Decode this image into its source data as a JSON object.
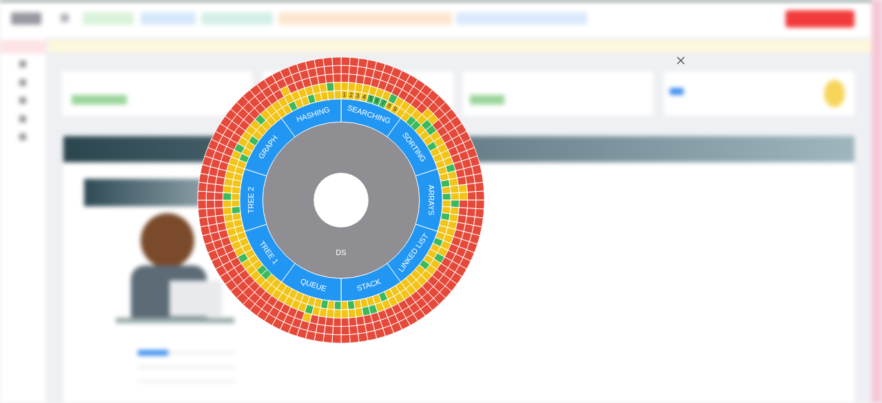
{
  "chart_data": {
    "type": "sunburst",
    "center": {
      "label": "DS",
      "color": "#8e8e93"
    },
    "categories": [
      "SEARCHING",
      "SORTING",
      "ARRAYS",
      "LINKED LIST",
      "STACK",
      "QUEUE",
      "TREE 1",
      "TREE 2",
      "GRAPH",
      "HASHING"
    ],
    "values": [
      10,
      10,
      10,
      10,
      10,
      10,
      10,
      10,
      10,
      10
    ],
    "color": "#2196f3",
    "rings": [
      {
        "colors": [
          [
            "#f2c417",
            "#f2c417",
            "#f2c417",
            "#f2c417",
            "#3cb95b",
            "#3cb95b",
            "#3cb95b",
            "#f2c417",
            "#f2c417",
            "#f2c417"
          ],
          [
            "#f2c417",
            "#3cb95b",
            "#3cb95b",
            "#f2c417",
            "#f2c417",
            "#f2c417",
            "#3cb95b",
            "#f2c417",
            "#f2c417",
            "#f2c417"
          ],
          [
            "#f2c417",
            "#f2c417",
            "#3cb95b",
            "#f2c417",
            "#3cb95b",
            "#f2c417",
            "#f2c417",
            "#3cb95b",
            "#f2c417",
            "#f2c417"
          ],
          [
            "#f2c417",
            "#3cb95b",
            "#f2c417",
            "#f2c417",
            "#f2c417",
            "#3cb95b",
            "#f2c417",
            "#f2c417",
            "#f2c417",
            "#f2c417"
          ],
          [
            "#f2c417",
            "#f2c417",
            "#f2c417",
            "#3cb95b",
            "#f2c417",
            "#f2c417",
            "#f2c417",
            "#f2c417",
            "#3cb95b",
            "#f2c417"
          ],
          [
            "#3cb95b",
            "#f2c417",
            "#3cb95b",
            "#f2c417",
            "#f2c417",
            "#f2c417",
            "#f2c417",
            "#f2c417",
            "#f2c417",
            "#f2c417"
          ],
          [
            "#f2c417",
            "#f2c417",
            "#3cb95b",
            "#3cb95b",
            "#f2c417",
            "#f2c417",
            "#f2c417",
            "#f2c417",
            "#f2c417",
            "#f2c417"
          ],
          [
            "#f2c417",
            "#f2c417",
            "#f2c417",
            "#3cb95b",
            "#f2c417",
            "#f2c417",
            "#f2c417",
            "#f2c417",
            "#f2c417",
            "#f2c417"
          ],
          [
            "#f2c417",
            "#3cb95b",
            "#f2c417",
            "#f2c417",
            "#3cb95b",
            "#f2c417",
            "#f2c417",
            "#f2c417",
            "#f2c417",
            "#f2c417"
          ],
          [
            "#f2c417",
            "#f2c417",
            "#3cb95b",
            "#f2c417",
            "#f2c417",
            "#3cb95b",
            "#f2c417",
            "#f2c417",
            "#f2c417",
            "#f2c417"
          ]
        ],
        "labels": [
          [
            "1",
            "2",
            "3",
            "4",
            "5",
            "6",
            "7",
            "8",
            "9",
            null
          ],
          [
            null,
            null,
            null,
            null,
            null,
            null,
            null,
            null,
            null,
            null
          ],
          [
            null,
            null,
            null,
            null,
            null,
            null,
            null,
            null,
            null,
            null
          ],
          [
            null,
            null,
            null,
            null,
            null,
            null,
            null,
            null,
            null,
            null
          ],
          [
            null,
            null,
            null,
            null,
            null,
            null,
            null,
            null,
            null,
            null
          ],
          [
            null,
            null,
            null,
            null,
            null,
            null,
            null,
            null,
            null,
            null
          ],
          [
            null,
            null,
            null,
            null,
            null,
            null,
            null,
            null,
            null,
            null
          ],
          [
            null,
            null,
            null,
            null,
            null,
            null,
            null,
            null,
            null,
            null
          ],
          [
            null,
            null,
            null,
            null,
            null,
            null,
            null,
            null,
            null,
            null
          ],
          [
            null,
            null,
            null,
            null,
            null,
            null,
            null,
            null,
            null,
            null
          ]
        ]
      },
      {
        "colors": [
          [
            "#f2c417",
            "#f2c417",
            "#f2c417",
            "#f2c417",
            "#f2c417",
            "#f2c417",
            "#f2c417",
            "#3cb95b",
            "#f2c417",
            "#f2c417"
          ],
          [
            "#f2c417",
            "#f2c417",
            "#f2c417",
            "#3cb95b",
            "#3cb95b",
            "#f2c417",
            "#f2c417",
            "#f2c417",
            "#f2c417",
            "#f2c417"
          ],
          [
            "#3cb95b",
            "#f2c417",
            "#f2c417",
            "#f2c417",
            "#f2c417",
            "#3cb95b",
            "#f2c417",
            "#f2c417",
            "#f2c417",
            "#f2c417"
          ],
          [
            "#f2c417",
            "#f2c417",
            "#f2c417",
            "#3cb95b",
            "#f2c417",
            "#f2c417",
            "#f2c417",
            "#f2c417",
            "#f2c417",
            "#f2c417"
          ],
          [
            "#f2c417",
            "#f2c417",
            "#f2c417",
            "#f2c417",
            "#f2c417",
            "#3cb95b",
            "#3cb95b",
            "#f2c417",
            "#f2c417",
            "#f2c417"
          ],
          [
            "#f2c417",
            "#f2c417",
            "#f2c417",
            "#f2c417",
            "#3cb95b",
            "#f2c417",
            "#f2c417",
            "#f2c417",
            "#f2c417",
            "#f2c417"
          ],
          [
            "#f2c417",
            "#f2c417",
            "#f2c417",
            "#f2c417",
            "#f2c417",
            "#f2c417",
            "#3cb95b",
            "#f2c417",
            "#f2c417",
            "#f2c417"
          ],
          [
            "#f2c417",
            "#f2c417",
            "#f2c417",
            "#f2c417",
            "#f2c417",
            "#3cb95b",
            "#f2c417",
            "#f2c417",
            "#f2c417",
            "#f2c417"
          ],
          [
            "#f2c417",
            "#f2c417",
            "#3cb95b",
            "#f2c417",
            "#f2c417",
            "#f2c417",
            "#f2c417",
            "#3cb95b",
            "#f2c417",
            "#f2c417"
          ],
          [
            "#f2c417",
            "#f2c417",
            "#f2c417",
            "#f2c417",
            "#f2c417",
            "#f2c417",
            "#f2c417",
            "#f2c417",
            "#3cb95b",
            "#f2c417"
          ]
        ]
      },
      {
        "colors": [
          [
            "#e5493a",
            "#e5493a",
            "#e5493a",
            "#e5493a",
            "#e5493a",
            "#e5493a",
            "#e5493a",
            "#e5493a",
            "#e5493a",
            "#e5493a"
          ],
          [
            "#e5493a",
            "#e5493a",
            "#f2c417",
            "#f2c417",
            "#e5493a",
            "#e5493a",
            "#e5493a",
            "#e5493a",
            "#e5493a",
            "#e5493a"
          ],
          [
            "#e5493a",
            "#e5493a",
            "#e5493a",
            "#f2c417",
            "#f2c417",
            "#e5493a",
            "#e5493a",
            "#e5493a",
            "#e5493a",
            "#e5493a"
          ],
          [
            "#e5493a",
            "#e5493a",
            "#e5493a",
            "#e5493a",
            "#e5493a",
            "#e5493a",
            "#e5493a",
            "#e5493a",
            "#e5493a",
            "#e5493a"
          ],
          [
            "#e5493a",
            "#e5493a",
            "#e5493a",
            "#e5493a",
            "#e5493a",
            "#e5493a",
            "#e5493a",
            "#e5493a",
            "#e5493a",
            "#e5493a"
          ],
          [
            "#e5493a",
            "#e5493a",
            "#e5493a",
            "#e5493a",
            "#f2c417",
            "#e5493a",
            "#e5493a",
            "#e5493a",
            "#e5493a",
            "#e5493a"
          ],
          [
            "#e5493a",
            "#e5493a",
            "#e5493a",
            "#e5493a",
            "#e5493a",
            "#e5493a",
            "#e5493a",
            "#e5493a",
            "#e5493a",
            "#e5493a"
          ],
          [
            "#e5493a",
            "#e5493a",
            "#e5493a",
            "#e5493a",
            "#e5493a",
            "#e5493a",
            "#e5493a",
            "#e5493a",
            "#e5493a",
            "#e5493a"
          ],
          [
            "#e5493a",
            "#e5493a",
            "#e5493a",
            "#e5493a",
            "#e5493a",
            "#e5493a",
            "#e5493a",
            "#e5493a",
            "#e5493a",
            "#e5493a"
          ],
          [
            "#e5493a",
            "#e5493a",
            "#f2c417",
            "#e5493a",
            "#e5493a",
            "#e5493a",
            "#e5493a",
            "#e5493a",
            "#e5493a",
            "#e5493a"
          ]
        ]
      },
      {
        "colors": [
          [
            "#e5493a",
            "#e5493a",
            "#e5493a",
            "#e5493a",
            "#e5493a",
            "#e5493a",
            "#e5493a",
            "#e5493a",
            "#e5493a",
            "#e5493a"
          ],
          [
            "#e5493a",
            "#e5493a",
            "#e5493a",
            "#e5493a",
            "#e5493a",
            "#e5493a",
            "#e5493a",
            "#e5493a",
            "#e5493a",
            "#e5493a"
          ],
          [
            "#e5493a",
            "#e5493a",
            "#e5493a",
            "#e5493a",
            "#e5493a",
            "#e5493a",
            "#e5493a",
            "#e5493a",
            "#e5493a",
            "#e5493a"
          ],
          [
            "#e5493a",
            "#e5493a",
            "#e5493a",
            "#e5493a",
            "#e5493a",
            "#e5493a",
            "#e5493a",
            "#e5493a",
            "#e5493a",
            "#e5493a"
          ],
          [
            "#e5493a",
            "#e5493a",
            "#e5493a",
            "#e5493a",
            "#e5493a",
            "#e5493a",
            "#e5493a",
            "#e5493a",
            "#e5493a",
            "#e5493a"
          ],
          [
            "#e5493a",
            "#e5493a",
            "#e5493a",
            "#e5493a",
            "#e5493a",
            "#e5493a",
            "#e5493a",
            "#e5493a",
            "#e5493a",
            "#e5493a"
          ],
          [
            "#e5493a",
            "#e5493a",
            "#e5493a",
            "#e5493a",
            "#e5493a",
            "#e5493a",
            "#e5493a",
            "#e5493a",
            "#e5493a",
            "#e5493a"
          ],
          [
            "#e5493a",
            "#e5493a",
            "#e5493a",
            "#e5493a",
            "#e5493a",
            "#e5493a",
            "#e5493a",
            "#e5493a",
            "#e5493a",
            "#e5493a"
          ],
          [
            "#e5493a",
            "#e5493a",
            "#e5493a",
            "#e5493a",
            "#e5493a",
            "#e5493a",
            "#e5493a",
            "#e5493a",
            "#e5493a",
            "#e5493a"
          ],
          [
            "#e5493a",
            "#e5493a",
            "#e5493a",
            "#e5493a",
            "#e5493a",
            "#e5493a",
            "#e5493a",
            "#e5493a",
            "#e5493a",
            "#e5493a"
          ]
        ]
      },
      {
        "colors": [
          [
            "#e5493a",
            "#e5493a",
            "#e5493a",
            "#e5493a",
            "#e5493a",
            "#e5493a",
            "#e5493a",
            "#e5493a",
            "#e5493a",
            "#e5493a"
          ],
          [
            "#e5493a",
            "#e5493a",
            "#e5493a",
            "#e5493a",
            "#e5493a",
            "#e5493a",
            "#e5493a",
            "#e5493a",
            "#e5493a",
            "#e5493a"
          ],
          [
            "#e5493a",
            "#e5493a",
            "#e5493a",
            "#e5493a",
            "#e5493a",
            "#e5493a",
            "#e5493a",
            "#e5493a",
            "#e5493a",
            "#e5493a"
          ],
          [
            "#e5493a",
            "#e5493a",
            "#e5493a",
            "#e5493a",
            "#e5493a",
            "#e5493a",
            "#e5493a",
            "#e5493a",
            "#e5493a",
            "#e5493a"
          ],
          [
            "#e5493a",
            "#e5493a",
            "#e5493a",
            "#e5493a",
            "#e5493a",
            "#e5493a",
            "#e5493a",
            "#e5493a",
            "#e5493a",
            "#e5493a"
          ],
          [
            "#e5493a",
            "#e5493a",
            "#e5493a",
            "#e5493a",
            "#e5493a",
            "#e5493a",
            "#e5493a",
            "#e5493a",
            "#e5493a",
            "#e5493a"
          ],
          [
            "#e5493a",
            "#e5493a",
            "#e5493a",
            "#e5493a",
            "#e5493a",
            "#e5493a",
            "#e5493a",
            "#e5493a",
            "#e5493a",
            "#e5493a"
          ],
          [
            "#e5493a",
            "#e5493a",
            "#e5493a",
            "#e5493a",
            "#e5493a",
            "#e5493a",
            "#e5493a",
            "#e5493a",
            "#e5493a",
            "#e5493a"
          ],
          [
            "#e5493a",
            "#e5493a",
            "#e5493a",
            "#e5493a",
            "#e5493a",
            "#e5493a",
            "#e5493a",
            "#e5493a",
            "#e5493a",
            "#e5493a"
          ],
          [
            "#e5493a",
            "#e5493a",
            "#e5493a",
            "#e5493a",
            "#e5493a",
            "#e5493a",
            "#e5493a",
            "#e5493a",
            "#e5493a",
            "#e5493a"
          ]
        ]
      }
    ]
  }
}
